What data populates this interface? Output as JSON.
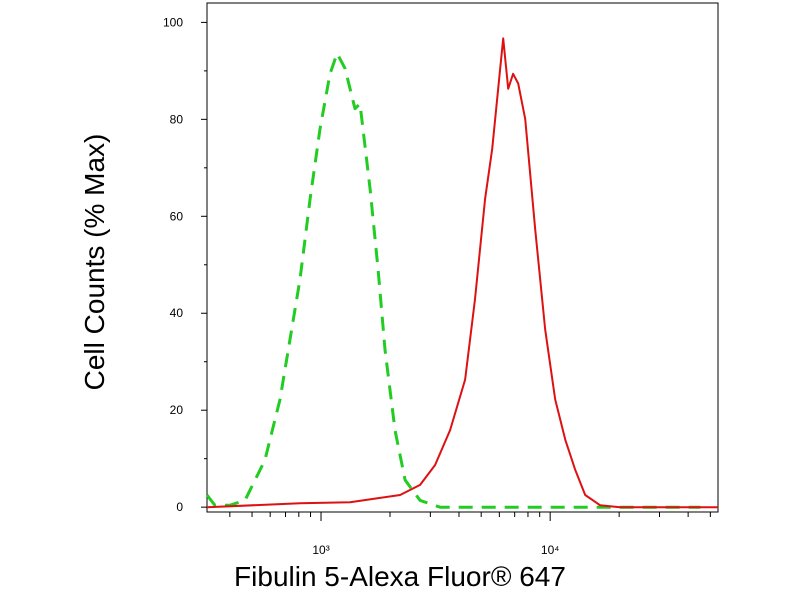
{
  "chart_data": {
    "type": "line",
    "x_label": "Fibulin 5-Alexa Fluor® 647",
    "y_label": "Cell Counts (% Max)",
    "xscale": "log",
    "xlim": [
      318,
      54000
    ],
    "ylim": [
      -1,
      104
    ],
    "xticks": [
      {
        "value": 1000,
        "label": "10³"
      },
      {
        "value": 10000,
        "label": "10⁴"
      }
    ],
    "xminorticks": [
      400,
      500,
      600,
      700,
      800,
      900,
      2000,
      3000,
      4000,
      5000,
      6000,
      7000,
      8000,
      9000,
      20000,
      30000,
      40000,
      50000
    ],
    "yticks": [
      0,
      20,
      40,
      60,
      80,
      100
    ],
    "yminorticks": [
      10,
      30,
      50,
      70,
      90
    ],
    "series": [
      {
        "color": "#22cc22",
        "line_style": "dashed",
        "x": [
          318,
          344,
          401,
          466,
          490,
          569,
          662,
          732,
          810,
          896,
          990,
          1094,
          1175,
          1273,
          1407,
          1480,
          1637,
          1774,
          1902,
          2104,
          2327,
          2705,
          3310,
          6050,
          16500,
          45200
        ],
        "values": [
          2.5,
          0.4,
          0.4,
          1.4,
          3.5,
          9.7,
          22.2,
          34.6,
          47,
          63.6,
          78,
          89.4,
          93.6,
          90.5,
          82.2,
          83.2,
          65.6,
          49,
          32.5,
          15.9,
          5.6,
          1.4,
          0,
          0,
          0,
          0
        ]
      },
      {
        "color": "#dd1111",
        "line_style": "solid",
        "x": [
          318,
          810,
          1339,
          1811,
          2213,
          2705,
          3147,
          3659,
          4254,
          4699,
          5200,
          5585,
          6050,
          6237,
          6561,
          6890,
          7250,
          7780,
          8600,
          9510,
          10520,
          11640,
          12860,
          14220,
          16500,
          20200,
          54000
        ],
        "values": [
          0,
          0.8,
          1.0,
          1.9,
          2.5,
          4.6,
          8.7,
          15.9,
          26.3,
          42.9,
          63.6,
          73.9,
          90.5,
          96.7,
          86.3,
          89.4,
          87.4,
          80.1,
          57.3,
          36.6,
          22.2,
          13.9,
          7.7,
          2.5,
          0.4,
          0,
          0
        ]
      }
    ]
  }
}
